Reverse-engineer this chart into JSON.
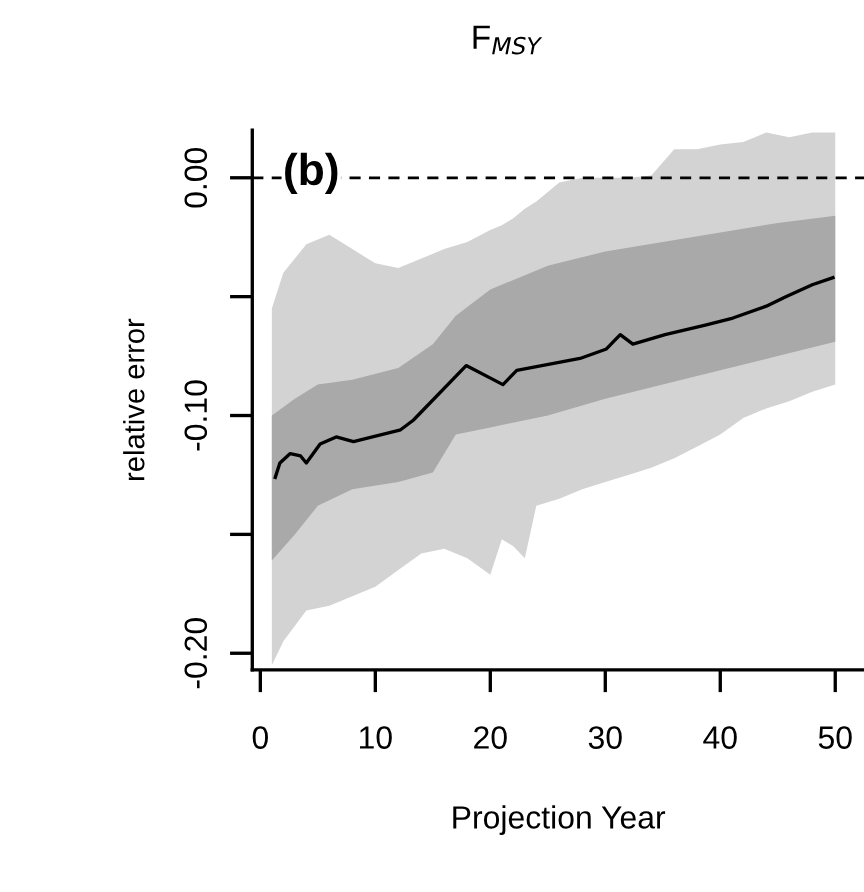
{
  "chart_data": {
    "type": "line",
    "title": "F$_{MSY}$",
    "xlabel": "Projection Year",
    "ylabel": "relative error",
    "annotations": [
      "(b)"
    ],
    "xlim": [
      -0.7,
      52.5
    ],
    "xticks": [
      0,
      10,
      20,
      30,
      40,
      50
    ],
    "ylim": [
      -0.207,
      0.02
    ],
    "yticks": [
      {
        "value": 0,
        "label": "0.00"
      },
      {
        "value": -0.05,
        "label": null
      },
      {
        "value": -0.1,
        "label": "-0.10"
      },
      {
        "value": -0.15,
        "label": null
      },
      {
        "value": -0.2,
        "label": "-0.20"
      }
    ],
    "grid": false,
    "legend": false,
    "marker": "none",
    "line_style": "solid",
    "ref_lines": [
      {
        "axis": "y",
        "value": 0,
        "color": "#000000",
        "line_style": "dashed"
      }
    ],
    "series": [
      {
        "color": "#d3d3d3",
        "x": [
          1,
          2,
          4,
          6,
          8,
          10,
          12,
          14,
          16,
          18,
          20,
          21,
          22,
          23,
          24,
          26,
          28,
          30,
          32,
          34,
          36,
          38,
          40,
          42,
          44,
          46,
          48,
          50
        ],
        "values": [
          null,
          null,
          null,
          null,
          null,
          null,
          null,
          null,
          null,
          null,
          null,
          null,
          null,
          null,
          null,
          null,
          null,
          null,
          null,
          null,
          null,
          null,
          null,
          null,
          null,
          null,
          null,
          null
        ],
        "upper": [
          -0.055,
          -0.04,
          -0.028,
          -0.024,
          -0.03,
          -0.036,
          -0.038,
          -0.034,
          -0.03,
          -0.027,
          -0.022,
          -0.02,
          -0.017,
          -0.013,
          -0.01,
          -0.002,
          0.0,
          0.0,
          0.0,
          0.001,
          0.012,
          0.012,
          0.014,
          0.015,
          0.019,
          0.017,
          0.019,
          0.019
        ],
        "lower": [
          -0.205,
          -0.195,
          -0.182,
          -0.18,
          -0.176,
          -0.172,
          -0.165,
          -0.158,
          -0.156,
          -0.16,
          -0.167,
          -0.152,
          -0.155,
          -0.16,
          -0.138,
          -0.135,
          -0.131,
          -0.128,
          -0.125,
          -0.122,
          -0.118,
          -0.113,
          -0.108,
          -0.101,
          -0.097,
          -0.094,
          -0.09,
          -0.087
        ]
      },
      {
        "color": "#a9a9a9",
        "x": [
          1,
          3,
          5,
          8,
          12,
          15,
          17,
          20,
          25,
          30,
          35,
          40,
          45,
          50
        ],
        "values": [
          null,
          null,
          null,
          null,
          null,
          null,
          null,
          null,
          null,
          null,
          null,
          null,
          null,
          null
        ],
        "upper": [
          -0.1,
          -0.093,
          -0.087,
          -0.085,
          -0.08,
          -0.07,
          -0.058,
          -0.047,
          -0.037,
          -0.031,
          -0.027,
          -0.023,
          -0.019,
          -0.016
        ],
        "lower": [
          -0.161,
          -0.15,
          -0.138,
          -0.131,
          -0.128,
          -0.124,
          -0.108,
          -0.105,
          -0.1,
          -0.093,
          -0.087,
          -0.081,
          -0.075,
          -0.069
        ]
      },
      {
        "color": "#000000",
        "x": [
          1.3,
          1.7,
          2.6,
          3.5,
          4.0,
          5.2,
          6.6,
          8.1,
          12.2,
          13.3,
          17.9,
          21.1,
          22.3,
          27.8,
          30.1,
          31.3,
          32.4,
          35.2,
          38.7,
          41.1,
          44.0,
          45.7,
          48.0,
          49.8
        ],
        "values": [
          -0.126,
          -0.12,
          -0.116,
          -0.117,
          -0.12,
          -0.112,
          -0.109,
          -0.111,
          -0.106,
          -0.102,
          -0.079,
          -0.087,
          -0.081,
          -0.076,
          -0.072,
          -0.066,
          -0.07,
          -0.066,
          -0.062,
          -0.059,
          -0.054,
          -0.05,
          -0.045,
          -0.042
        ]
      }
    ]
  }
}
